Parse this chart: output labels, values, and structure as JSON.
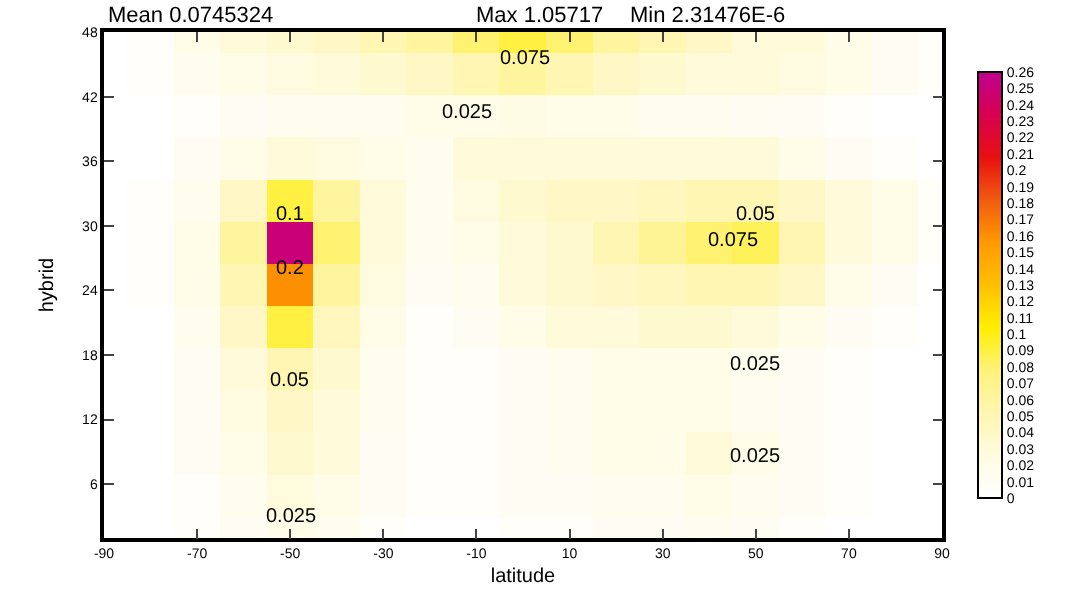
{
  "chart_data": {
    "type": "heatmap",
    "xlabel": "latitude",
    "ylabel": "hybrid",
    "annotations": [
      "Mean 0.0745324",
      "Max 1.05717",
      "Min 2.31476E-6",
      "0.075",
      "0.025",
      "0.1",
      "0.2",
      "0.05",
      "0.025",
      "0.05",
      "0.075",
      "0.025",
      "0.025"
    ],
    "x": [
      -90,
      -80,
      -70,
      -60,
      -50,
      -40,
      -30,
      -20,
      -10,
      0,
      10,
      20,
      30,
      40,
      50,
      60,
      70,
      80,
      90
    ],
    "cells": [
      [
        0,
        0.005,
        0.02,
        0.03,
        0.035,
        0.04,
        0.05,
        0.06,
        0.08,
        0.09,
        0.08,
        0.06,
        0.05,
        0.04,
        0.03,
        0.03,
        0.02,
        0.01,
        0.005
      ],
      [
        0,
        0.005,
        0.015,
        0.02,
        0.025,
        0.03,
        0.035,
        0.04,
        0.05,
        0.06,
        0.05,
        0.04,
        0.035,
        0.03,
        0.03,
        0.025,
        0.02,
        0.01,
        0.005
      ],
      [
        0,
        0,
        0.005,
        0.01,
        0.015,
        0.015,
        0.015,
        0.02,
        0.02,
        0.022,
        0.02,
        0.02,
        0.015,
        0.015,
        0.012,
        0.01,
        0.005,
        0,
        0
      ],
      [
        0,
        0,
        0.01,
        0.02,
        0.03,
        0.025,
        0.02,
        0.015,
        0.03,
        0.03,
        0.03,
        0.03,
        0.03,
        0.03,
        0.03,
        0.02,
        0.01,
        0.005,
        0
      ],
      [
        0,
        0.005,
        0.015,
        0.04,
        0.09,
        0.06,
        0.03,
        0.015,
        0.025,
        0.035,
        0.04,
        0.04,
        0.045,
        0.05,
        0.05,
        0.04,
        0.03,
        0.02,
        0.005
      ],
      [
        0,
        0.005,
        0.02,
        0.06,
        0.25,
        0.08,
        0.03,
        0.015,
        0.02,
        0.03,
        0.035,
        0.05,
        0.065,
        0.08,
        0.085,
        0.05,
        0.03,
        0.02,
        0.005
      ],
      [
        0,
        0.005,
        0.02,
        0.05,
        0.16,
        0.06,
        0.025,
        0.01,
        0.015,
        0.03,
        0.035,
        0.04,
        0.045,
        0.05,
        0.05,
        0.04,
        0.02,
        0.01,
        0
      ],
      [
        0,
        0,
        0.015,
        0.04,
        0.09,
        0.045,
        0.02,
        0.005,
        0.01,
        0.02,
        0.03,
        0.03,
        0.035,
        0.035,
        0.03,
        0.02,
        0.01,
        0.005,
        0
      ],
      [
        0,
        0,
        0.01,
        0.03,
        0.05,
        0.035,
        0.015,
        0.005,
        0.005,
        0.01,
        0.015,
        0.02,
        0.02,
        0.02,
        0.015,
        0.01,
        0.005,
        0,
        0
      ],
      [
        0,
        0,
        0.01,
        0.025,
        0.04,
        0.03,
        0.015,
        0.005,
        0.005,
        0.01,
        0.015,
        0.02,
        0.02,
        0.02,
        0.015,
        0.01,
        0.005,
        0,
        0
      ],
      [
        0,
        0,
        0.01,
        0.02,
        0.035,
        0.03,
        0.01,
        0.005,
        0.005,
        0.01,
        0.015,
        0.02,
        0.02,
        0.03,
        0.02,
        0.01,
        0.005,
        0,
        0
      ],
      [
        0,
        0,
        0.005,
        0.015,
        0.028,
        0.02,
        0.01,
        0.005,
        0.005,
        0.01,
        0.01,
        0.015,
        0.015,
        0.02,
        0.015,
        0.01,
        0.005,
        0,
        0
      ],
      [
        0,
        0,
        0.005,
        0.01,
        0.02,
        0.015,
        0.005,
        0,
        0,
        0.005,
        0.005,
        0.01,
        0.01,
        0.015,
        0.01,
        0.005,
        0,
        0,
        0
      ]
    ],
    "colors": [
      "#ffffff",
      "#fffbe0",
      "#fff6b0",
      "#fff27a",
      "#ffee00",
      "#ffc000",
      "#ff9a00",
      "#f25a10",
      "#e81010",
      "#d80050",
      "#c00090"
    ],
    "xlim": [
      -90,
      90
    ],
    "xticks": [
      -90,
      -70,
      -50,
      -30,
      -10,
      10,
      30,
      50,
      70,
      90
    ],
    "ylim": [
      1,
      48
    ],
    "yticks": [
      6,
      12,
      18,
      24,
      30,
      36,
      42,
      48
    ],
    "clim": [
      0,
      0.26
    ],
    "cticks": [
      0,
      0.01,
      0.02,
      0.03,
      0.04,
      0.05,
      0.06,
      0.07,
      0.08,
      0.09,
      0.1,
      0.11,
      0.12,
      0.13,
      0.14,
      0.15,
      0.16,
      0.17,
      0.18,
      0.19,
      0.2,
      0.21,
      0.22,
      0.23,
      0.24,
      0.25,
      0.26
    ]
  }
}
